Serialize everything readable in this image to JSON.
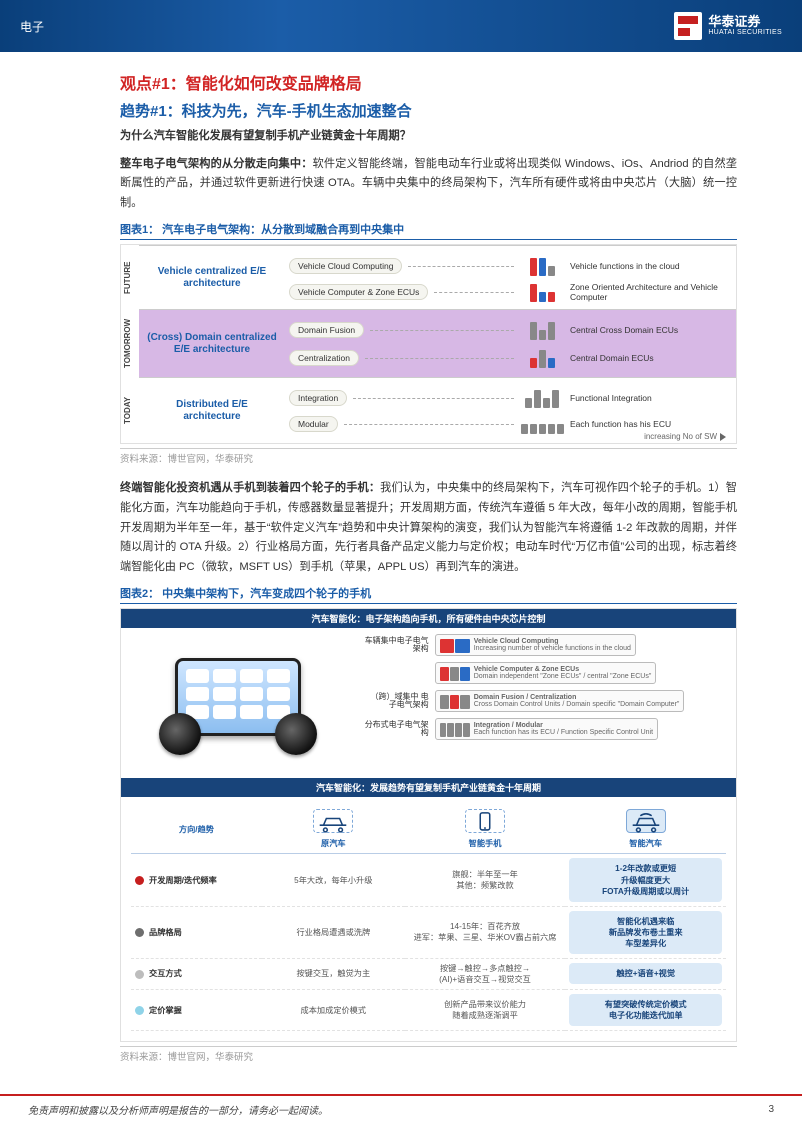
{
  "header": {
    "category": "电子",
    "brand_cn": "华泰证券",
    "brand_en": "HUATAI SECURITIES"
  },
  "title1": "观点#1：智能化如何改变品牌格局",
  "title2": "趋势#1：科技为先，汽车-手机生态加速整合",
  "para1_bold": "为什么汽车智能化发展有望复制手机产业链黄金十年周期？",
  "para2_bold": "整车电子电气架构的从分散走向集中：",
  "para2_rest": "软件定义智能终端，智能电动车行业或将出现类似 Windows、iOs、Andriod 的自然垄断属性的产品，并通过软件更新进行快速 OTA。车辆中央集中的终局架构下，汽车所有硬件或将由中央芯片（大脑）统一控制。",
  "fig1_caption": "图表1： 汽车电子电气架构：从分散到域融合再到中央集中",
  "chart1": {
    "ylabels": [
      "FUTURE",
      "TOMORROW",
      "TODAY"
    ],
    "band_colors": [
      "#ffffff",
      "#d7b8e5",
      "#ffffff"
    ],
    "arch_left": [
      "Vehicle centralized E/E architecture",
      "(Cross) Domain centralized E/E architecture",
      "Distributed E/E architecture"
    ],
    "rows": [
      {
        "band": 0,
        "y": 10,
        "bubble": "Vehicle Cloud Computing",
        "rlabel": "Vehicle functions in the cloud"
      },
      {
        "band": 0,
        "y": 36,
        "bubble": "Vehicle Computer & Zone ECUs",
        "rlabel": "Zone Oriented Architecture and Vehicle Computer"
      },
      {
        "band": 1,
        "y": 10,
        "bubble": "Domain Fusion",
        "rlabel": "Central Cross Domain ECUs"
      },
      {
        "band": 1,
        "y": 36,
        "bubble": "Centralization",
        "rlabel": "Central Domain ECUs"
      },
      {
        "band": 2,
        "y": 10,
        "bubble": "Integration",
        "rlabel": "Functional Integration"
      },
      {
        "band": 2,
        "y": 36,
        "bubble": "Modular",
        "rlabel": "Each function has his ECU"
      }
    ],
    "increasing": "increasing No of SW"
  },
  "source1": "资料来源：博世官网，华泰研究",
  "para3_bold": "终端智能化投资机遇从手机到装着四个轮子的手机：",
  "para3_rest": "我们认为，中央集中的终局架构下，汽车可视作四个轮子的手机。1）智能化方面，汽车功能趋向于手机，传感器数量显著提升；开发周期方面，传统汽车遵循 5 年大改，每年小改的周期，智能手机开发周期为半年至一年，基于“软件定义汽车”趋势和中央计算架构的演变，我们认为智能汽车将遵循 1-2 年改款的周期，并伴随以周计的 OTA 升级。2）行业格局方面，先行者具备产品定义能力与定价权；电动车时代“万亿市值”公司的出现，标志着终端智能化由 PC（微软，MSFT US）到手机（苹果，APPL US）再到汽车的演进。",
  "fig2_caption": "图表2： 中央集中架构下，汽车变成四个轮子的手机",
  "chart2": {
    "topbar": "汽车智能化：电子架构趋向手机，所有硬件由中央芯片控制",
    "ur_rows": [
      {
        "cn": "车辆集中电子电气架构",
        "l1": "Vehicle Cloud Computing",
        "l2": "Increasing number of vehicle functions in the cloud"
      },
      {
        "cn": "",
        "l1": "Vehicle Computer & Zone ECUs",
        "l2": "Domain independent \"Zone ECUs\" / central \"Zone ECUs\""
      },
      {
        "cn": "（跨）域集中 电子电气架构",
        "l1": "Domain Fusion / Centralization",
        "l2": "Cross Domain Control Units / Domain specific \"Domain Computer\""
      },
      {
        "cn": "分布式电子电气架构",
        "l1": "Integration / Modular",
        "l2": "Each function has its ECU / Function Specific Control Unit"
      }
    ],
    "midbar": "汽车智能化：发展趋势有望复制手机产业链黄金十年周期",
    "cols": [
      "方向/趋势",
      "原汽车",
      "智能手机",
      "智能汽车"
    ],
    "rows": [
      {
        "dot": "#c61f1f",
        "label": "开发周期/迭代频率",
        "c1": "5年大改，每年小升级",
        "c2": "旗舰：半年至一年\n其他：频繁改款",
        "c3": "1-2年改款或更短\n升级幅度更大\nFOTA升级周期或以周计"
      },
      {
        "dot": "#6e6e6e",
        "label": "品牌格局",
        "c1": "行业格局遭遇或洗牌",
        "c2": "14-15年：百花齐放\n进军：苹果、三星、华米OV霸占前六席",
        "c3": "智能化机遇来临\n新品牌发布卷土重来\n车型差异化"
      },
      {
        "dot": "#bdbdbd",
        "label": "交互方式",
        "c1": "按键交互，触觉为主",
        "c2": "按键→触控→多点触控→\n(AI)+语音交互→视觉交互",
        "c3": "触控+语音+视觉"
      },
      {
        "dot": "#8fd3e8",
        "label": "定价掌握",
        "c1": "成本加成定价模式",
        "c2": "创新产品带来议价能力\n随着成熟逐渐调平",
        "c3": "有望突破传统定价模式\n电子化功能迭代加单"
      }
    ]
  },
  "source2": "资料来源：博世官网，华泰研究",
  "footer": "免责声明和披露以及分析师声明是报告的一部分，请务必一起阅读。",
  "pagenum": "3"
}
